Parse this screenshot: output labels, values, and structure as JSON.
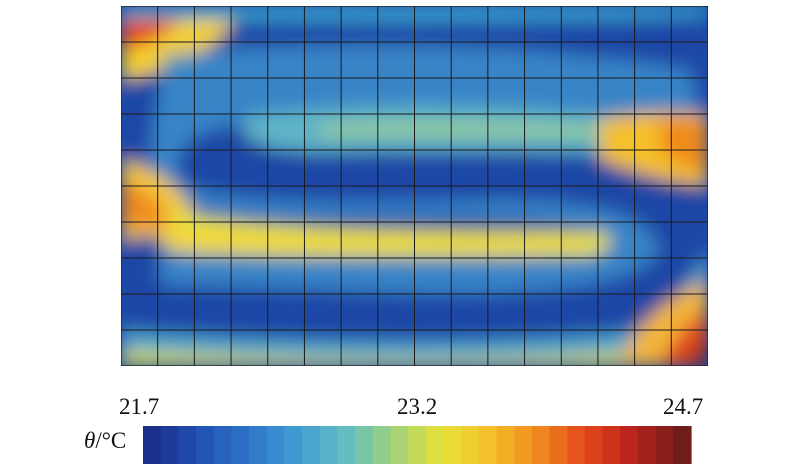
{
  "chart_data": {
    "type": "heatmap",
    "title": "",
    "colorbar": {
      "label_symbol": "θ",
      "label_unit": "/°C",
      "min": 21.7,
      "mid": 23.2,
      "max": 24.7,
      "tick_labels": [
        "21.7",
        "23.2",
        "24.7"
      ],
      "steps": 31
    },
    "grid": {
      "columns": 16,
      "rows": 10,
      "visible": true
    },
    "field_description_values": {
      "background_value": 22.0,
      "hot_corners": [
        {
          "corner": "top-left",
          "value": 24.2
        },
        {
          "corner": "left-middle",
          "value": 24.0
        },
        {
          "corner": "right-upper",
          "value": 24.1
        },
        {
          "corner": "bottom-right",
          "value": 24.7
        }
      ],
      "serpentine_band_value": 23.4,
      "inner_channel_value": 22.7
    },
    "colormap": [
      "#1b2f8a",
      "#2251b5",
      "#2f74c8",
      "#3f9dd2",
      "#62bcc2",
      "#9fd27c",
      "#e6e23a",
      "#f5c02a",
      "#f08a1f",
      "#e2471c",
      "#b8211d",
      "#6e1d1a"
    ]
  }
}
